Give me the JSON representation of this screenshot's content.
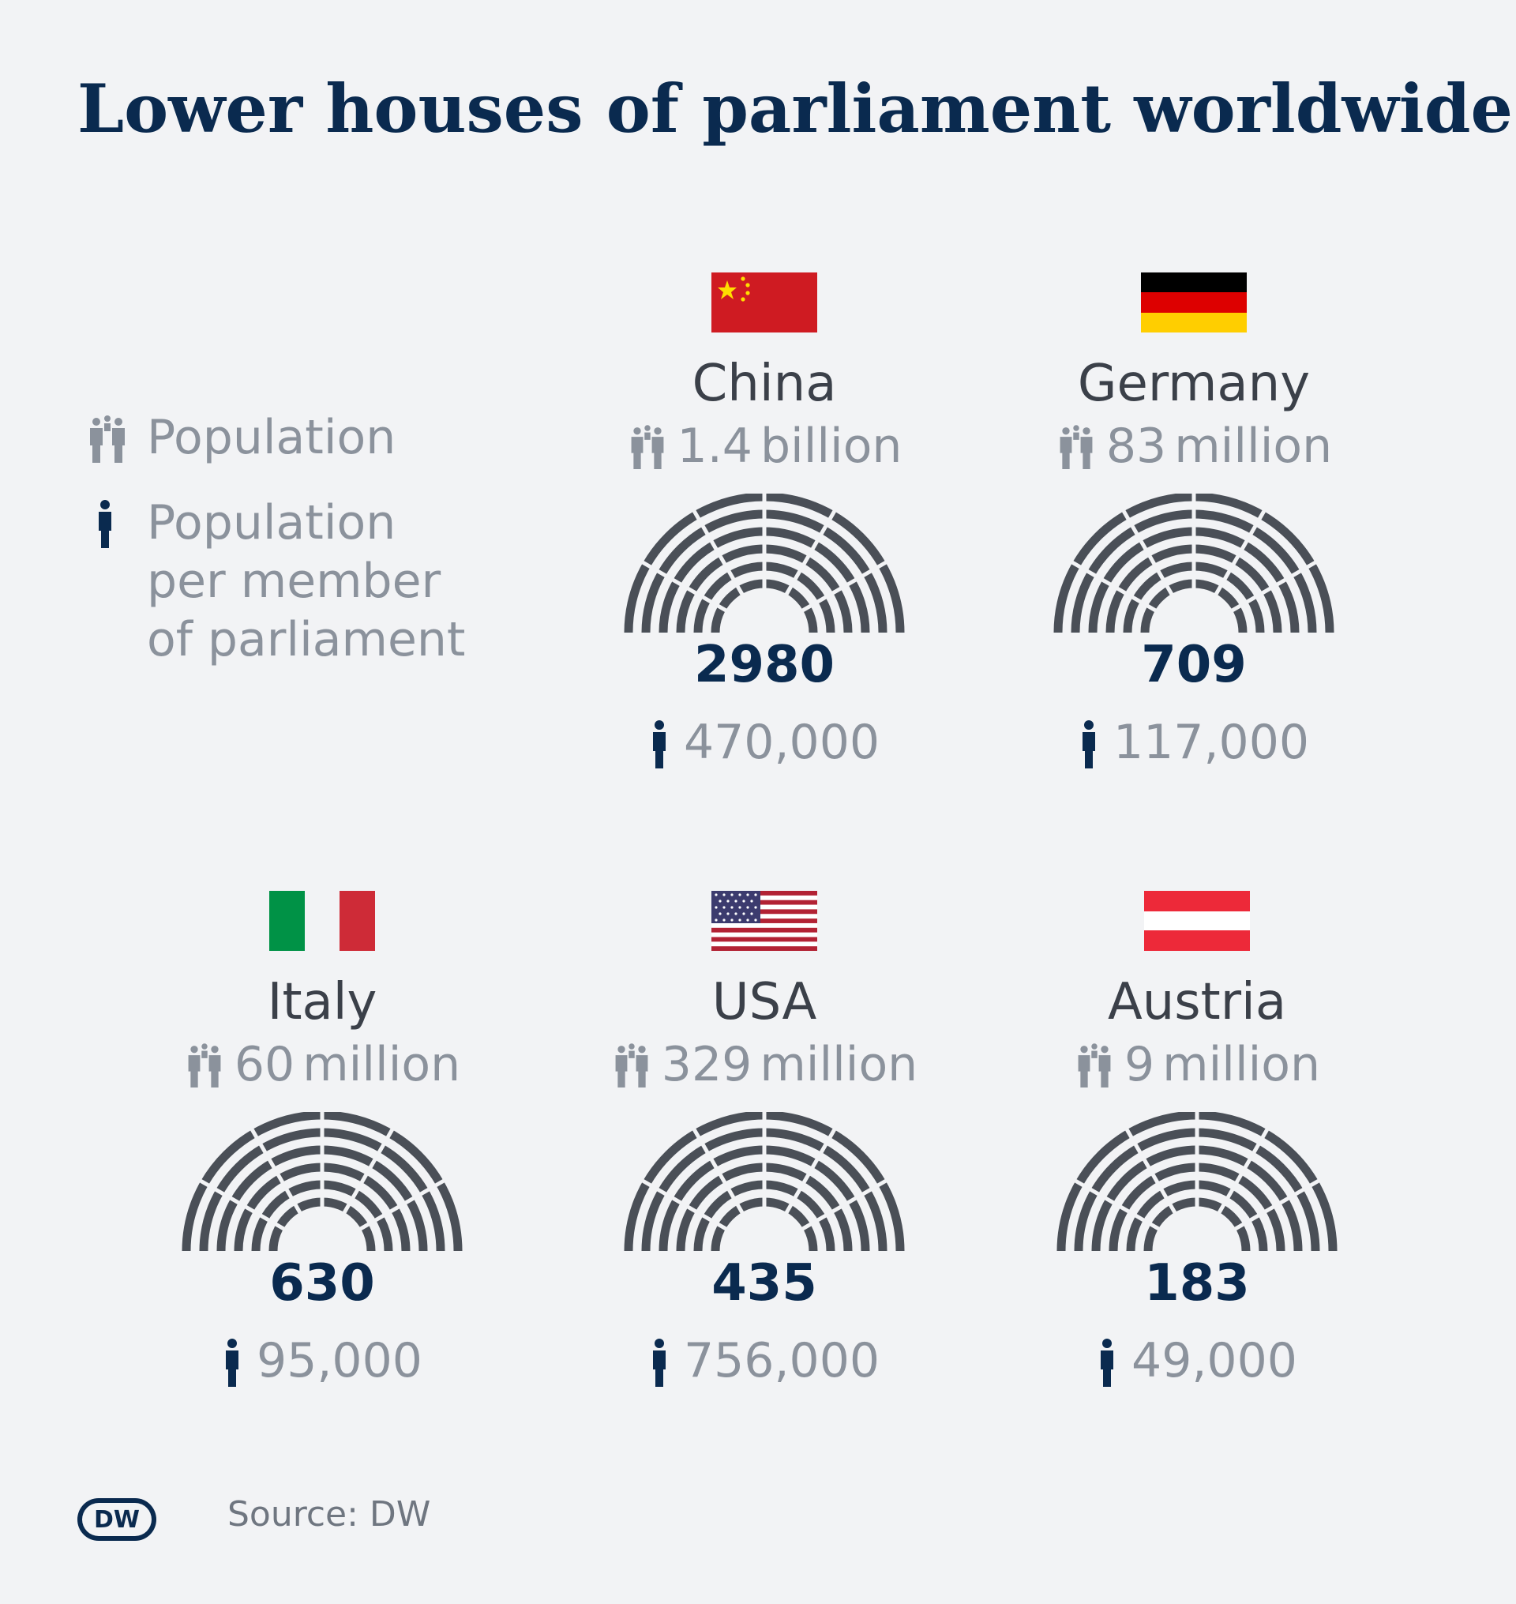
{
  "title": "Lower houses of parliament worldwide",
  "legend": {
    "population": "Population",
    "per_member": [
      "Population",
      "per member",
      "of parliament"
    ]
  },
  "countries": [
    {
      "name": "China",
      "population_value": "1.4",
      "population_unit": "billion",
      "seats": "2980",
      "per_member": "470,000",
      "flag": "china-flag"
    },
    {
      "name": "Germany",
      "population_value": "83",
      "population_unit": "million",
      "seats": "709",
      "per_member": "117,000",
      "flag": "germany-flag"
    },
    {
      "name": "Italy",
      "population_value": "60",
      "population_unit": "million",
      "seats": "630",
      "per_member": "95,000",
      "flag": "italy-flag"
    },
    {
      "name": "USA",
      "population_value": "329",
      "population_unit": "million",
      "seats": "435",
      "per_member": "756,000",
      "flag": "usa-flag"
    },
    {
      "name": "Austria",
      "population_value": "9",
      "population_unit": "million",
      "seats": "183",
      "per_member": "49,000",
      "flag": "austria-flag"
    }
  ],
  "footer": {
    "logo_text": "DW",
    "source": "Source: DW"
  },
  "colors": {
    "navy": "#0a2a4f",
    "grey_text": "#8b929c",
    "hemicycle": "#4a4f57"
  }
}
